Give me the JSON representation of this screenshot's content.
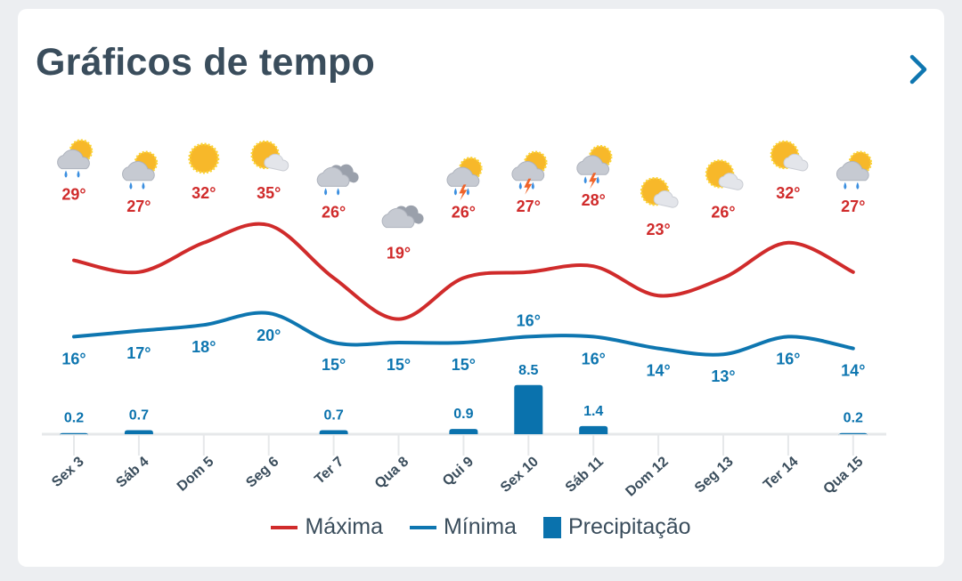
{
  "header": {
    "title": "Gráficos de tempo"
  },
  "colors": {
    "max": "#d02b2b",
    "min": "#0e76b0",
    "precip": "#0a72ad",
    "text": "#3a4d5c"
  },
  "chart_data": {
    "type": "line",
    "title": "Gráficos de tempo",
    "categories": [
      "Sex 3",
      "Sáb 4",
      "Dom 5",
      "Seg 6",
      "Ter 7",
      "Qua 8",
      "Qui 9",
      "Sex 10",
      "Sáb 11",
      "Dom 12",
      "Seg 13",
      "Ter 14",
      "Qua 15"
    ],
    "icons": [
      "sun-cloud-rain",
      "sun-cloud-rain",
      "sun",
      "sun-cloud",
      "cloud-rain",
      "cloud",
      "sun-cloud-storm",
      "sun-cloud-storm",
      "sun-cloud-storm",
      "sun-cloud",
      "sun-cloud",
      "sun-cloud",
      "sun-cloud-rain"
    ],
    "series": [
      {
        "name": "Máxima",
        "type": "line",
        "values": [
          29,
          27,
          32,
          35,
          26,
          19,
          26,
          27,
          28,
          23,
          26,
          32,
          27
        ],
        "labels": [
          "29°",
          "27°",
          "32°",
          "35°",
          "26°",
          "19°",
          "26°",
          "27°",
          "28°",
          "23°",
          "26°",
          "32°",
          "27°"
        ]
      },
      {
        "name": "Mínima",
        "type": "line",
        "values": [
          16,
          17,
          18,
          20,
          15,
          15,
          15,
          16,
          16,
          14,
          13,
          16,
          14
        ],
        "labels": [
          "16°",
          "17°",
          "18°",
          "20°",
          "15°",
          "15°",
          "15°",
          "16°",
          "16°",
          "14°",
          "13°",
          "16°",
          "14°"
        ]
      },
      {
        "name": "Precipitação",
        "type": "bar",
        "values": [
          0.2,
          0.7,
          null,
          null,
          0.7,
          null,
          0.9,
          8.5,
          1.4,
          null,
          null,
          null,
          0.2
        ],
        "labels": [
          "0.2",
          "0.7",
          null,
          null,
          "0.7",
          null,
          "0.9",
          "8.5",
          "1.4",
          null,
          null,
          null,
          "0.2"
        ]
      }
    ]
  },
  "legend": {
    "max": "Máxima",
    "min": "Mínima",
    "precip": "Precipitação"
  }
}
